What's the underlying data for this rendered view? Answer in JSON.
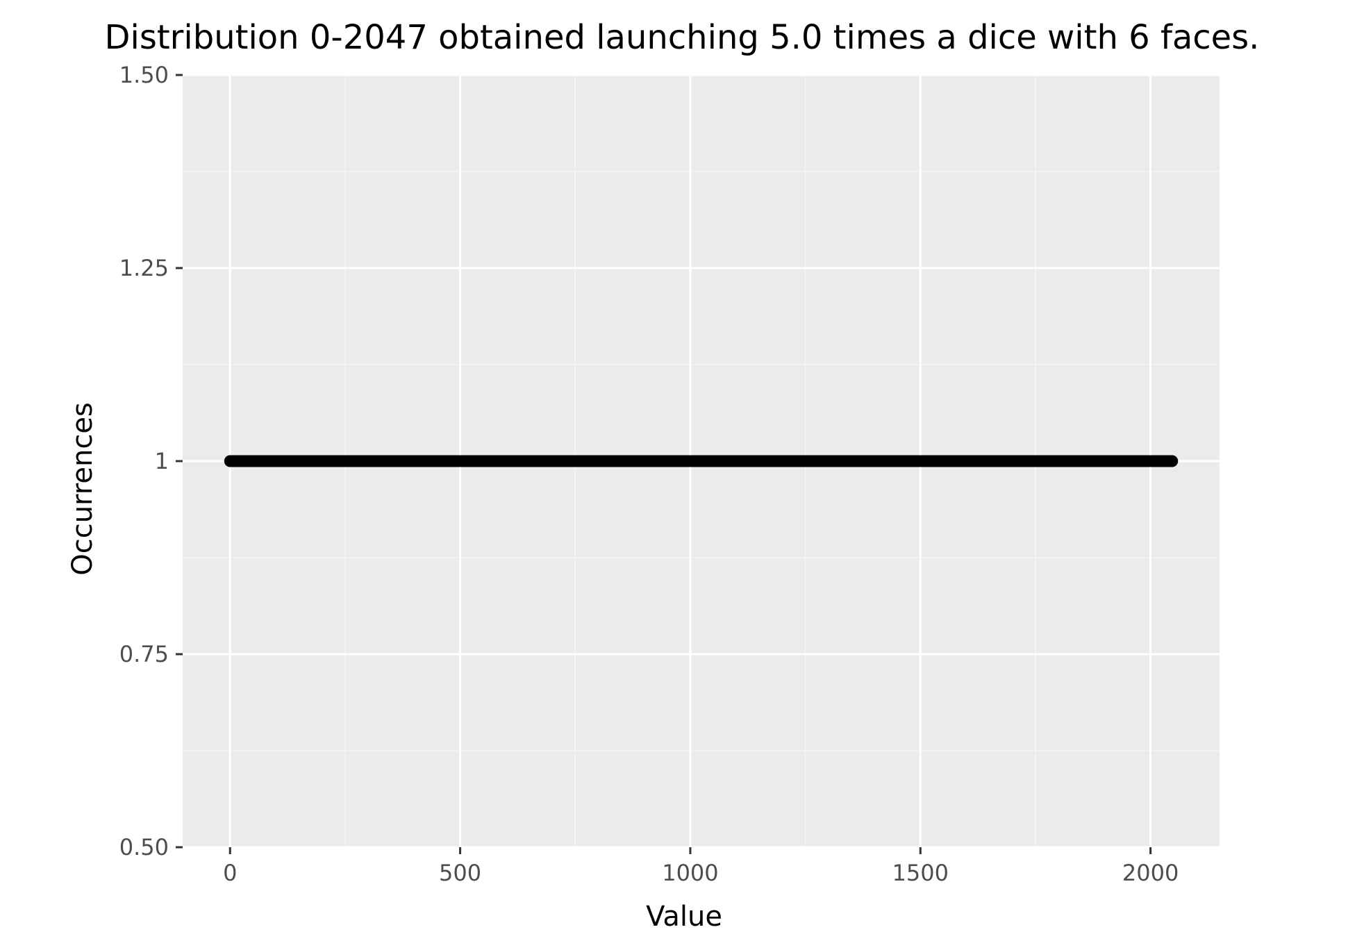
{
  "chart_data": {
    "type": "scatter",
    "title": "Distribution 0-2047 obtained launching 5.0 times a dice with 6 faces.",
    "xlabel": "Value",
    "ylabel": "Occurrences",
    "xlim": [
      -103,
      2150
    ],
    "ylim": [
      0.5,
      1.5
    ],
    "x_ticks": [
      0,
      500,
      1000,
      1500,
      2000
    ],
    "x_tick_labels": [
      "0",
      "500",
      "1000",
      "1500",
      "2000"
    ],
    "y_ticks": [
      0.5,
      0.75,
      1,
      1.25,
      1.5
    ],
    "y_tick_labels": [
      "0.50",
      "0.75",
      "1",
      "1.25",
      "1.50"
    ],
    "grid": true,
    "legend": "none",
    "series": [
      {
        "x_range": [
          0,
          2047
        ],
        "x_step": 1,
        "y": 1,
        "color": "#000000"
      }
    ],
    "colors": {
      "panel_background": "#ebebeb",
      "grid_major": "#ffffff",
      "grid_minor": "#f5f5f5",
      "tick_label": "#4d4d4d",
      "tick_mark": "#333333",
      "point": "#000000"
    }
  }
}
